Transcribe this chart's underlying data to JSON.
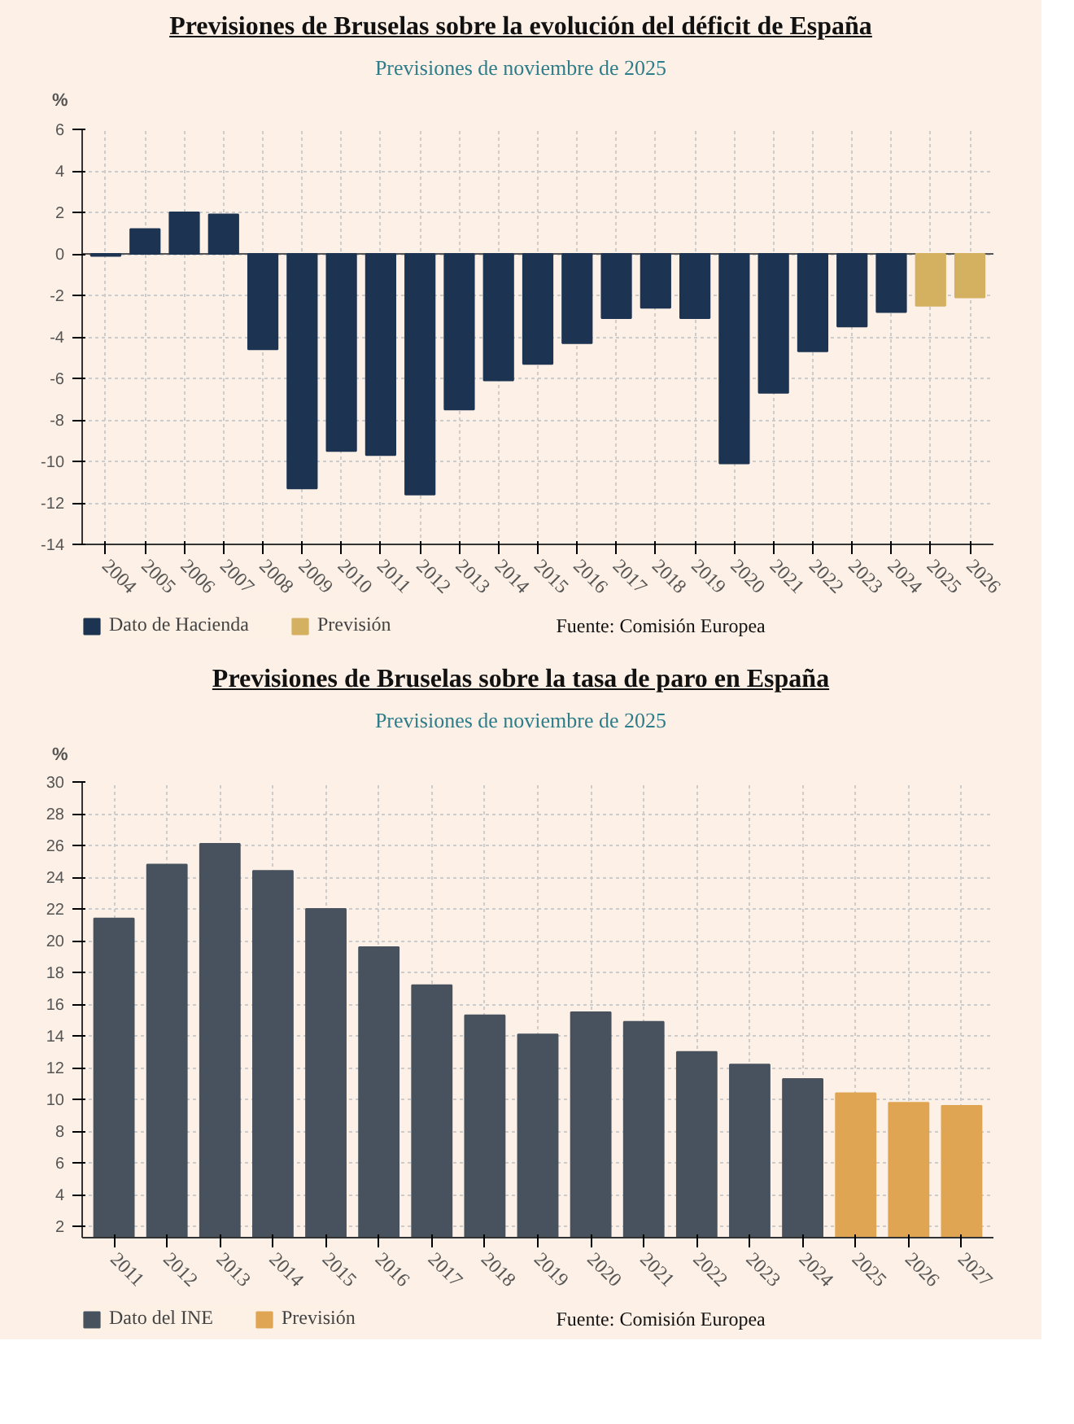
{
  "chart_data": [
    {
      "type": "bar",
      "title": "Previsiones de Bruselas sobre la evolución del déficit de España",
      "subtitle": "Previsiones de noviembre de 2025",
      "ylabel": "%",
      "categories": [
        "2004",
        "2005",
        "2006",
        "2007",
        "2008",
        "2009",
        "2010",
        "2011",
        "2012",
        "2013",
        "2014",
        "2015",
        "2016",
        "2017",
        "2018",
        "2019",
        "2020",
        "2021",
        "2022",
        "2023",
        "2024",
        "2025",
        "2026"
      ],
      "stacked": true,
      "series": [
        {
          "name": "Dato de Hacienda",
          "color": "#1c3451",
          "values": [
            -0.1,
            1.2,
            2.0,
            1.9,
            -4.6,
            -11.3,
            -9.5,
            -9.7,
            -11.6,
            -7.5,
            -6.1,
            -5.3,
            -4.3,
            -3.1,
            -2.6,
            -3.1,
            -10.1,
            -6.7,
            -4.7,
            -3.5,
            -2.8,
            null,
            null
          ]
        },
        {
          "name": "Previsión",
          "color": "#d4b061",
          "values": [
            null,
            null,
            null,
            null,
            null,
            null,
            null,
            null,
            null,
            null,
            null,
            null,
            null,
            null,
            null,
            null,
            null,
            null,
            null,
            null,
            null,
            -2.5,
            -2.1
          ]
        }
      ],
      "ylim": [
        -14,
        6
      ],
      "yticks": [
        -14,
        -12,
        -10,
        -8,
        -6,
        -4,
        -2,
        0,
        2,
        4,
        6
      ],
      "grid": true,
      "legend": "bottom left",
      "annotations": [
        "Fuente: Comisión Europea"
      ]
    },
    {
      "type": "bar",
      "title": "Previsiones de Bruselas sobre la tasa de paro en España",
      "subtitle": "Previsiones de noviembre de 2025",
      "ylabel": "%",
      "categories": [
        "2011",
        "2012",
        "2013",
        "2014",
        "2015",
        "2016",
        "2017",
        "2018",
        "2019",
        "2020",
        "2021",
        "2022",
        "2023",
        "2024",
        "2025",
        "2026",
        "2027"
      ],
      "stacked": true,
      "series": [
        {
          "name": "Dato del INE",
          "color": "#47525e",
          "values": [
            21.4,
            24.8,
            26.1,
            24.4,
            22.0,
            19.6,
            17.2,
            15.3,
            14.1,
            15.5,
            14.9,
            13.0,
            12.2,
            11.3,
            null,
            null,
            null
          ]
        },
        {
          "name": "Previsión",
          "color": "#e0a552",
          "values": [
            null,
            null,
            null,
            null,
            null,
            null,
            null,
            null,
            null,
            null,
            null,
            null,
            null,
            null,
            10.4,
            9.8,
            9.6
          ]
        }
      ],
      "ylim": [
        1.3,
        30
      ],
      "yticks": [
        2,
        4,
        6,
        8,
        10,
        12,
        14,
        16,
        18,
        20,
        22,
        24,
        26,
        28,
        30
      ],
      "grid": true,
      "legend": "bottom left",
      "annotations": [
        "Fuente: Comisión Europea"
      ]
    }
  ]
}
